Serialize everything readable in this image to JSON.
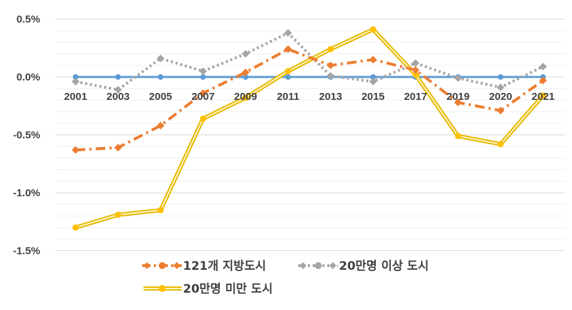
{
  "chart_data": {
    "type": "line",
    "categories": [
      "2001",
      "2003",
      "2005",
      "2007",
      "2009",
      "2011",
      "2013",
      "2015",
      "2017",
      "2019",
      "2020",
      "2021"
    ],
    "ylim": [
      -1.5,
      0.5
    ],
    "yticks": [
      "0.5%",
      "0.0%",
      "-0.5%",
      "-1.0%",
      "-1.5%"
    ],
    "ytick_values": [
      0.5,
      0.0,
      -0.5,
      -1.0,
      -1.5
    ],
    "grid": true,
    "legend_position": "bottom",
    "baseline": {
      "values": [
        0,
        0,
        0,
        0,
        0,
        0,
        0,
        0,
        0,
        0,
        0,
        0
      ],
      "color": "#5b9bd5"
    },
    "series": [
      {
        "name": "121개 지방도시",
        "values": [
          -0.63,
          -0.61,
          -0.42,
          -0.14,
          0.04,
          0.24,
          0.1,
          0.15,
          0.06,
          -0.22,
          -0.29,
          -0.03
        ],
        "color": "#ed7d31",
        "style": "dashdot"
      },
      {
        "name": "20만명 이상 도시",
        "values": [
          -0.04,
          -0.11,
          0.16,
          0.05,
          0.2,
          0.38,
          0.01,
          -0.04,
          0.12,
          -0.01,
          -0.09,
          0.09
        ],
        "color": "#a5a5a5",
        "style": "dotted"
      },
      {
        "name": "20만명 미만 도시",
        "values": [
          -1.3,
          -1.19,
          -1.15,
          -0.36,
          -0.18,
          0.05,
          0.24,
          0.41,
          0.02,
          -0.51,
          -0.58,
          -0.16
        ],
        "color": "#ffc000",
        "style": "double"
      }
    ]
  }
}
